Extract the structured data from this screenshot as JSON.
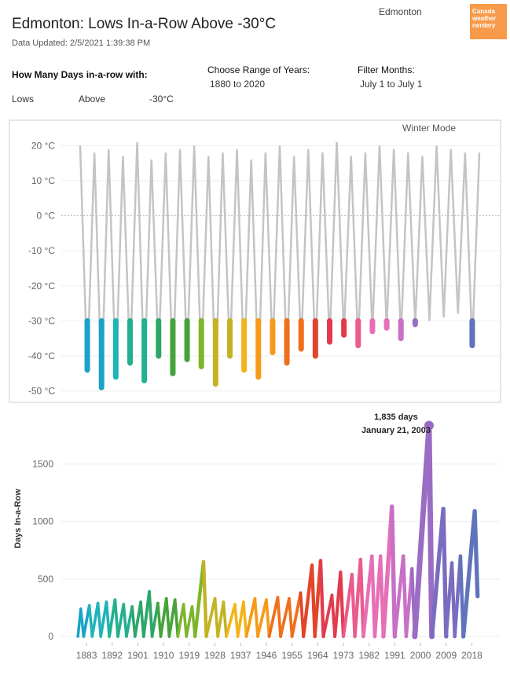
{
  "header": {
    "title": "Edmonton: Lows In-a-Row Above -30°C",
    "updated": "Data Updated: 2/5/2021 1:39:38 PM",
    "city": "Edmonton",
    "logo": "Canada weather nerdery"
  },
  "controls": {
    "question": "How Many Days in-a-row with:",
    "measure": "Lows",
    "direction": "Above",
    "threshold": "-30°C",
    "range_label": "Choose Range of Years:",
    "range_value": "1880 to 2020",
    "months_label": "Filter Months:",
    "months_value": "July 1 to July 1"
  },
  "palette": [
    "#1aa3c8",
    "#1fb4b8",
    "#22b08f",
    "#2ea66a",
    "#45a33a",
    "#7fb52c",
    "#c2b324",
    "#f2b41c",
    "#f59a1a",
    "#ef6f1d",
    "#e2452a",
    "#e23b4e",
    "#ea5b8e",
    "#e66fb6",
    "#c86fc6",
    "#9a6cc4",
    "#7a6cc0",
    "#5f74bb"
  ],
  "chart_data": [
    {
      "type": "line",
      "annotation": "Winter Mode",
      "threshold": -30,
      "color": "#c4c4c4",
      "x": [
        1880,
        1882.5,
        1885,
        1887.5,
        1890,
        1892.5,
        1895,
        1897.5,
        1900,
        1902.5,
        1905,
        1907.5,
        1910,
        1912.5,
        1915,
        1917.5,
        1920,
        1922.5,
        1925,
        1927.5,
        1930,
        1932.5,
        1935,
        1937.5,
        1940,
        1942.5,
        1945,
        1947.5,
        1950,
        1952.5,
        1955,
        1957.5,
        1960,
        1962.5,
        1965,
        1967.5,
        1970,
        1972.5,
        1975,
        1977.5,
        1980,
        1982.5,
        1985,
        1987.5,
        1990,
        1992.5,
        1995,
        1997.5,
        2000,
        2002.5,
        2005,
        2007.5,
        2010,
        2012.5,
        2015,
        2017.5,
        2020
      ],
      "values": [
        20,
        -44,
        18,
        -49,
        19,
        -46,
        17,
        -42,
        21,
        -47,
        16,
        -40,
        18,
        -45,
        19,
        -41,
        20,
        -43,
        17,
        -48,
        18,
        -40,
        19,
        -44,
        16,
        -46,
        18,
        -39,
        20,
        -42,
        17,
        -38,
        19,
        -40,
        18,
        -36,
        21,
        -34,
        17,
        -37,
        18,
        -33,
        20,
        -32,
        19,
        -35,
        18,
        -31,
        17,
        -30,
        20,
        -29,
        19,
        -28,
        18,
        -37,
        18
      ],
      "xlim": [
        1880,
        2020
      ],
      "ylim": [
        -53,
        25
      ],
      "yticks": [
        {
          "value": 20,
          "label": "20 °C"
        },
        {
          "value": 10,
          "label": "10 °C"
        },
        {
          "value": 0,
          "label": "0 °C"
        },
        {
          "value": -10,
          "label": "-10 °C"
        },
        {
          "value": -20,
          "label": "-20 °C"
        },
        {
          "value": -30,
          "label": "-30 °C"
        },
        {
          "value": -40,
          "label": "-40 °C"
        },
        {
          "value": -50,
          "label": "-50 °C"
        }
      ],
      "grid": true
    },
    {
      "type": "line",
      "y_label": "Days In-a-Row",
      "annotation": [
        "1,835 days",
        "January 21, 2003"
      ],
      "x": [
        1880,
        1881,
        1882,
        1884,
        1885,
        1887,
        1888,
        1890,
        1891,
        1893,
        1894,
        1896,
        1897,
        1899,
        1900,
        1902,
        1903,
        1905,
        1906,
        1908,
        1909,
        1911,
        1912,
        1914,
        1915,
        1917,
        1918,
        1920,
        1921,
        1924,
        1925,
        1928,
        1929,
        1931,
        1932,
        1935,
        1936,
        1938,
        1939,
        1942,
        1943,
        1946,
        1947,
        1950,
        1951,
        1954,
        1955,
        1958,
        1959,
        1962,
        1963,
        1965,
        1966,
        1969,
        1970,
        1972,
        1973,
        1976,
        1977,
        1979,
        1980,
        1983,
        1984,
        1986,
        1987,
        1990,
        1991,
        1994,
        1995,
        1997,
        1998,
        2003,
        2004,
        2008,
        2009,
        2011,
        2012,
        2014,
        2015,
        2019,
        2020
      ],
      "values": [
        0,
        240,
        0,
        270,
        0,
        290,
        0,
        300,
        0,
        320,
        0,
        280,
        0,
        260,
        0,
        300,
        0,
        390,
        0,
        290,
        0,
        330,
        0,
        320,
        0,
        280,
        0,
        260,
        0,
        650,
        0,
        330,
        0,
        300,
        0,
        280,
        0,
        300,
        0,
        330,
        0,
        320,
        0,
        340,
        0,
        330,
        0,
        380,
        0,
        620,
        0,
        660,
        0,
        360,
        0,
        560,
        0,
        540,
        0,
        670,
        0,
        700,
        0,
        700,
        0,
        1130,
        0,
        700,
        0,
        590,
        0,
        1835,
        0,
        1110,
        0,
        640,
        0,
        700,
        0,
        1090,
        350
      ],
      "xlim": [
        1875,
        2022
      ],
      "ylim": [
        0,
        1900
      ],
      "xticks": [
        1883,
        1892,
        1901,
        1910,
        1919,
        1928,
        1937,
        1946,
        1955,
        1964,
        1973,
        1982,
        1991,
        2000,
        2009,
        2018
      ],
      "yticks": [
        0,
        500,
        1000,
        1500
      ],
      "grid": true
    }
  ]
}
